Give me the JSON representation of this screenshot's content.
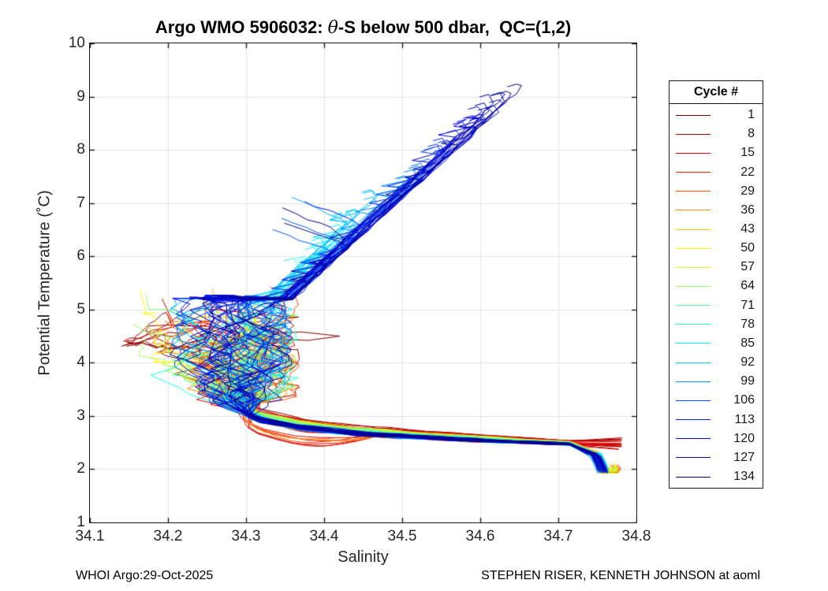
{
  "figure": {
    "title_prefix": "Argo WMO 5906032: ",
    "title_theta": "θ",
    "title_suffix": "-S below 500 dbar,  QC=(1,2)",
    "footer_left": "WHOI Argo:29-Oct-2025",
    "footer_right": "STEPHEN RISER, KENNETH JOHNSON at aoml"
  },
  "chart_data": {
    "type": "line",
    "title": "Argo WMO 5906032: θ-S below 500 dbar,  QC=(1,2)",
    "xlabel": "Salinity",
    "ylabel": "Potential Temperature (˚C)",
    "xlim": [
      34.1,
      34.8
    ],
    "ylim": [
      1,
      10
    ],
    "x_ticks": [
      "34.1",
      "34.2",
      "34.3",
      "34.4",
      "34.5",
      "34.6",
      "34.7",
      "34.8"
    ],
    "y_ticks": [
      "1",
      "2",
      "3",
      "4",
      "5",
      "6",
      "7",
      "8",
      "9",
      "10"
    ],
    "grid": true,
    "colors": {
      "background": "#ffffff",
      "axis": "#1a1a1a",
      "grid": "#e4e4e4",
      "text": "#262626"
    },
    "cycles": {
      "first": 1,
      "last": 134,
      "count": 134,
      "colormap": "jet reversed (cycle 1 = dark red, cycle 134 = dark navy)"
    },
    "legend": {
      "title": "Cycle #",
      "position": "right-outside",
      "entries": [
        {
          "label": "1",
          "color": "#800000"
        },
        {
          "label": "8",
          "color": "#B50000"
        },
        {
          "label": "15",
          "color": "#EB0000"
        },
        {
          "label": "22",
          "color": "#FF2200"
        },
        {
          "label": "29",
          "color": "#FF5700"
        },
        {
          "label": "36",
          "color": "#FF8D00"
        },
        {
          "label": "43",
          "color": "#FFC300"
        },
        {
          "label": "50",
          "color": "#FFF800"
        },
        {
          "label": "57",
          "color": "#D0FF2F"
        },
        {
          "label": "64",
          "color": "#9AFF65"
        },
        {
          "label": "71",
          "color": "#65FF9A"
        },
        {
          "label": "78",
          "color": "#2FFFD0"
        },
        {
          "label": "85",
          "color": "#00F8FF"
        },
        {
          "label": "92",
          "color": "#00C3FF"
        },
        {
          "label": "99",
          "color": "#008DFF"
        },
        {
          "label": "106",
          "color": "#0057FF"
        },
        {
          "label": "113",
          "color": "#0022FF"
        },
        {
          "label": "120",
          "color": "#0000EB"
        },
        {
          "label": "127",
          "color": "#0000B5"
        },
        {
          "label": "134",
          "color": "#000080"
        }
      ]
    },
    "profile_model": {
      "description": "Each cycle is a theta-S profile below 500 dbar: deep hook near (34.75,1.9), a cold band rising from (34.72,2.5) to (34.30,3.1), a noisy mixing blob over S 34.16-34.37 / theta 3-5, and for later (blue) cycles a warm straight branch climbing to (34.66,9.35). Early (dark red) cycles end deep at (34.78,2.45) and wander left to (34.145,4.35).",
      "band_anchors": [
        [
          34.76,
          2.42
        ],
        [
          34.72,
          2.47
        ],
        [
          34.64,
          2.52
        ],
        [
          34.54,
          2.59
        ],
        [
          34.44,
          2.68
        ],
        [
          34.37,
          2.79
        ],
        [
          34.315,
          2.95
        ],
        [
          34.29,
          3.12
        ]
      ],
      "hook_tip": [
        34.75,
        1.9
      ],
      "early_deep_end": [
        34.777,
        2.44
      ],
      "blob": {
        "s_min": 34.162,
        "s_max": 34.37,
        "theta_base": 3.1
      },
      "warm_branch": {
        "s_ref": 34.35,
        "theta_ref": 5.2,
        "ds_per_degree": 0.0747,
        "theta_max": 9.38
      },
      "maroon_tail_end": [
        34.145,
        4.35
      ],
      "theta_top_early": 4.9
    }
  }
}
